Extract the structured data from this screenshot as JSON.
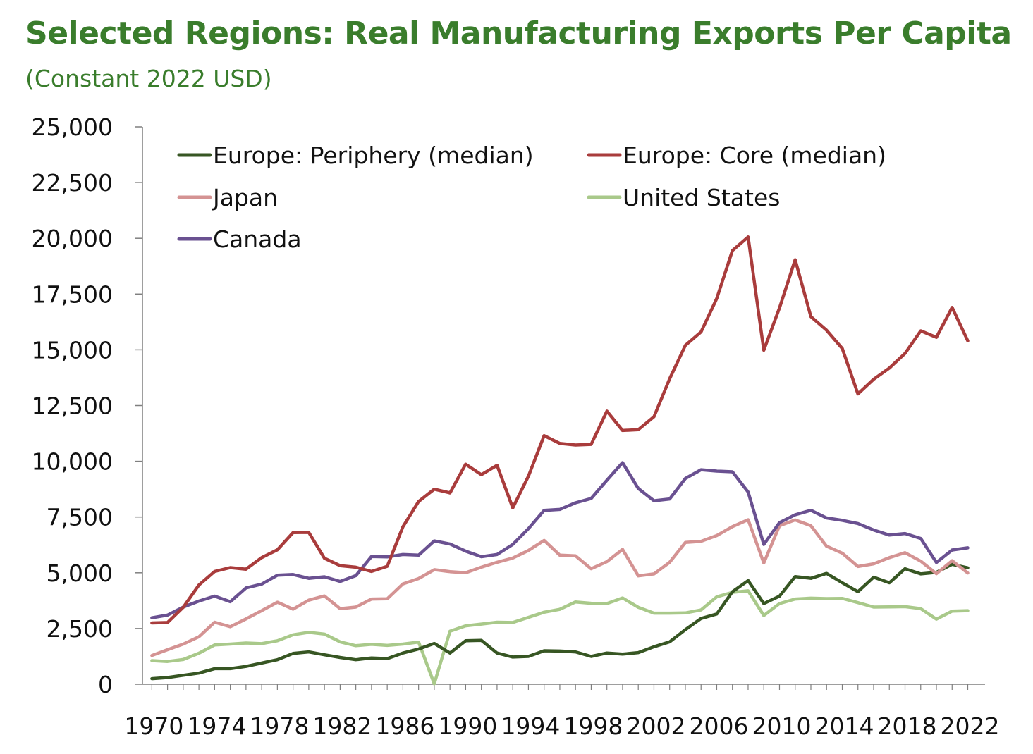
{
  "chart_data": {
    "type": "line",
    "title": "Selected Regions: Real Manufacturing Exports Per Capita",
    "subtitle": "(Constant 2022 USD)",
    "xlabel": "",
    "ylabel": "",
    "ylim": [
      0,
      25000
    ],
    "yticks": [
      0,
      2500,
      5000,
      7500,
      10000,
      12500,
      15000,
      17500,
      20000,
      22500,
      25000
    ],
    "ytick_labels": [
      "0",
      "2,500",
      "5,000",
      "7,500",
      "10,000",
      "12,500",
      "15,000",
      "17,500",
      "20,000",
      "22,500",
      "25,000"
    ],
    "xticks": [
      1970,
      1974,
      1978,
      1982,
      1986,
      1990,
      1994,
      1998,
      2002,
      2006,
      2010,
      2014,
      2018,
      2022
    ],
    "xtick_labels": [
      "1970",
      "1974",
      "1978",
      "1982",
      "1986",
      "1990",
      "1994",
      "1998",
      "2002",
      "2006",
      "2010",
      "2014",
      "2018",
      "2022"
    ],
    "grid": false,
    "legend_position": "top-left",
    "x": [
      1970,
      1971,
      1972,
      1973,
      1974,
      1975,
      1976,
      1977,
      1978,
      1979,
      1980,
      1981,
      1982,
      1983,
      1984,
      1985,
      1986,
      1987,
      1988,
      1989,
      1990,
      1991,
      1992,
      1993,
      1994,
      1995,
      1996,
      1997,
      1998,
      1999,
      2000,
      2001,
      2002,
      2003,
      2004,
      2005,
      2006,
      2007,
      2008,
      2009,
      2010,
      2011,
      2012,
      2013,
      2014,
      2015,
      2016,
      2017,
      2018,
      2019,
      2020,
      2021,
      2022
    ],
    "series": [
      {
        "name": "Europe: Periphery (median)",
        "color": "#375623",
        "values": [
          250,
          300,
          400,
          500,
          700,
          700,
          800,
          950,
          1100,
          1380,
          1450,
          1320,
          1200,
          1100,
          1180,
          1150,
          1400,
          1580,
          1830,
          1400,
          1950,
          1970,
          1400,
          1220,
          1250,
          1500,
          1490,
          1450,
          1250,
          1400,
          1350,
          1420,
          1680,
          1900,
          2450,
          2950,
          3150,
          4150,
          4650,
          3620,
          3950,
          4830,
          4750,
          4970,
          4550,
          4150,
          4800,
          4550,
          5180,
          4950,
          5020,
          5380,
          5220
        ]
      },
      {
        "name": "Europe: Core (median)",
        "color": "#a93c3c",
        "values": [
          2750,
          2770,
          3450,
          4450,
          5060,
          5230,
          5160,
          5680,
          6030,
          6800,
          6810,
          5650,
          5320,
          5250,
          5060,
          5290,
          7060,
          8200,
          8750,
          8580,
          9870,
          9400,
          9820,
          7910,
          9330,
          11150,
          10800,
          10730,
          10760,
          12250,
          11380,
          11420,
          12000,
          13700,
          15200,
          15800,
          17300,
          19450,
          20060,
          14980,
          16880,
          19040,
          16490,
          15880,
          15060,
          13020,
          13680,
          14180,
          14840,
          15850,
          15560,
          16900,
          15400
        ]
      },
      {
        "name": "Japan",
        "color": "#d49393",
        "values": [
          1290,
          1550,
          1800,
          2130,
          2780,
          2580,
          2930,
          3300,
          3680,
          3370,
          3770,
          3960,
          3390,
          3460,
          3820,
          3830,
          4500,
          4740,
          5140,
          5050,
          5000,
          5250,
          5470,
          5660,
          6000,
          6450,
          5790,
          5760,
          5180,
          5500,
          6050,
          4860,
          4950,
          5470,
          6360,
          6410,
          6670,
          7070,
          7380,
          5440,
          7110,
          7370,
          7110,
          6190,
          5880,
          5280,
          5400,
          5680,
          5900,
          5520,
          4960,
          5540,
          4990
        ]
      },
      {
        "name": "United States",
        "color": "#a9c98a",
        "values": [
          1060,
          1020,
          1110,
          1390,
          1760,
          1800,
          1850,
          1820,
          1950,
          2220,
          2330,
          2250,
          1900,
          1730,
          1790,
          1740,
          1800,
          1890,
          20,
          2380,
          2620,
          2700,
          2780,
          2770,
          3000,
          3230,
          3360,
          3690,
          3630,
          3620,
          3870,
          3450,
          3190,
          3190,
          3200,
          3330,
          3920,
          4120,
          4190,
          3080,
          3620,
          3820,
          3860,
          3840,
          3850,
          3660,
          3460,
          3470,
          3480,
          3390,
          2920,
          3280,
          3300
        ]
      },
      {
        "name": "Canada",
        "color": "#6a5191",
        "values": [
          2980,
          3100,
          3460,
          3730,
          3950,
          3700,
          4320,
          4490,
          4890,
          4920,
          4750,
          4820,
          4610,
          4870,
          5730,
          5710,
          5820,
          5790,
          6430,
          6290,
          5970,
          5720,
          5820,
          6270,
          6980,
          7800,
          7840,
          8140,
          8330,
          9150,
          9940,
          8780,
          8230,
          8310,
          9230,
          9620,
          9560,
          9530,
          8620,
          6270,
          7250,
          7600,
          7800,
          7460,
          7350,
          7210,
          6920,
          6690,
          6760,
          6540,
          5460,
          6020,
          6120
        ]
      }
    ]
  }
}
